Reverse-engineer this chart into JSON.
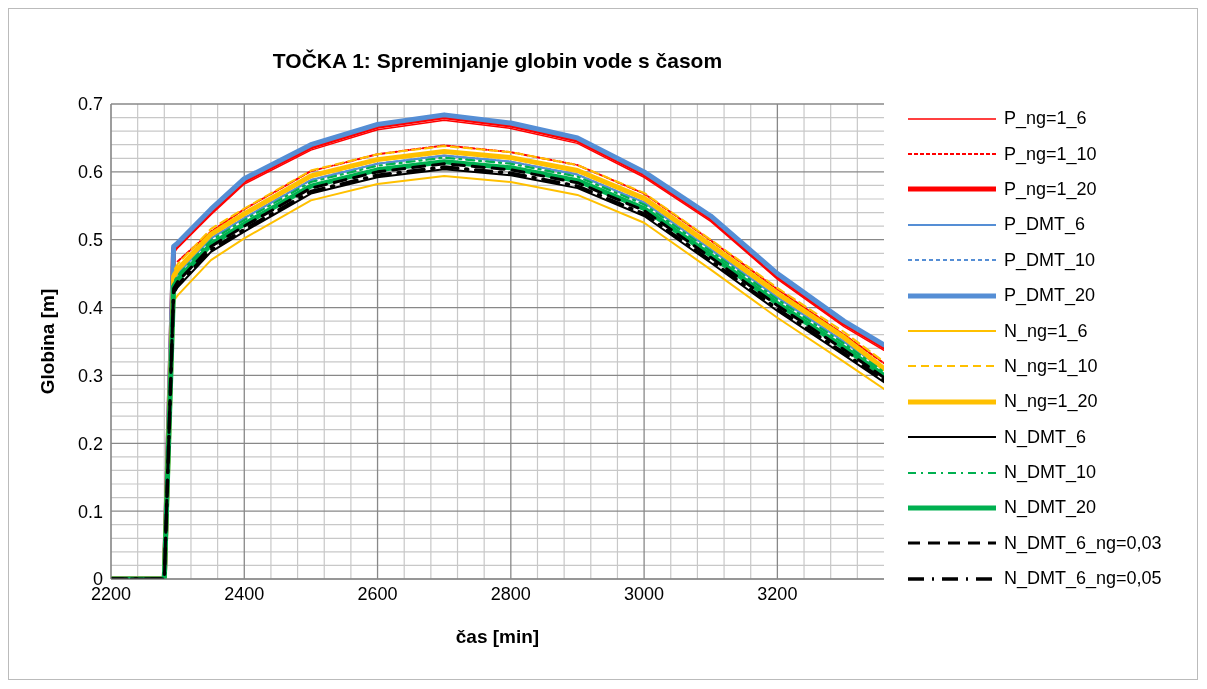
{
  "chart_data": {
    "type": "line",
    "title": "TOČKA 1: Spreminjanje globin vode s časom",
    "xlabel": "čas [min]",
    "ylabel": "Globina [m]",
    "x": [
      2200,
      2280,
      2294,
      2300,
      2350,
      2400,
      2500,
      2600,
      2700,
      2800,
      2900,
      3000,
      3100,
      3200,
      3300,
      3360
    ],
    "xlim": [
      2200,
      3360
    ],
    "xticks": [
      2200,
      2400,
      2600,
      2800,
      3000,
      3200
    ],
    "ylim": [
      0,
      0.7
    ],
    "yticks": [
      0,
      0.1,
      0.2,
      0.3,
      0.4,
      0.5,
      0.6,
      0.7
    ],
    "grid": true,
    "legend": "right",
    "marker": "none",
    "series": [
      {
        "name": "P_ng=1_6",
        "color": "#ff0000",
        "line_style": "solid",
        "values": [
          0,
          0,
          0.48,
          0.488,
          0.537,
          0.582,
          0.632,
          0.662,
          0.676,
          0.664,
          0.642,
          0.592,
          0.527,
          0.442,
          0.372,
          0.337
        ]
      },
      {
        "name": "P_ng=1_10",
        "color": "#ff0000",
        "line_style": "dashed",
        "values": [
          null,
          null,
          null,
          0.468,
          0.512,
          0.545,
          0.601,
          0.626,
          0.639,
          0.629,
          0.61,
          0.568,
          0.499,
          0.427,
          0.36,
          0.318
        ]
      },
      {
        "name": "P_ng=1_20",
        "color": "#ff0000",
        "line_style": "solid",
        "values": [
          0,
          0,
          0.487,
          0.492,
          0.542,
          0.587,
          0.637,
          0.667,
          0.681,
          0.669,
          0.647,
          0.597,
          0.532,
          0.447,
          0.377,
          0.342
        ]
      },
      {
        "name": "P_DMT_6",
        "color": "#558ed5",
        "line_style": "solid",
        "values": [
          null,
          null,
          0.44,
          0.45,
          0.502,
          0.532,
          0.588,
          0.612,
          0.624,
          0.615,
          0.596,
          0.555,
          0.486,
          0.415,
          0.35,
          0.308
        ]
      },
      {
        "name": "P_DMT_10",
        "color": "#558ed5",
        "line_style": "dashed",
        "values": [
          0,
          0,
          0.44,
          0.45,
          0.502,
          0.532,
          0.588,
          0.612,
          0.624,
          0.615,
          0.596,
          0.555,
          0.486,
          0.415,
          0.35,
          0.308
        ]
      },
      {
        "name": "P_DMT_20",
        "color": "#558ed5",
        "line_style": "solid",
        "values": [
          0,
          0,
          0.49,
          0.495,
          0.545,
          0.59,
          0.64,
          0.67,
          0.684,
          0.672,
          0.65,
          0.6,
          0.535,
          0.45,
          0.38,
          0.345
        ]
      },
      {
        "name": "N_ng=1_6",
        "color": "#ffc000",
        "line_style": "solid",
        "values": [
          0,
          0,
          0.41,
          0.418,
          0.47,
          0.502,
          0.558,
          0.582,
          0.594,
          0.585,
          0.566,
          0.525,
          0.456,
          0.385,
          0.32,
          0.28
        ]
      },
      {
        "name": "N_ng=1_10",
        "color": "#ffc000",
        "line_style": "dashed",
        "values": [
          0,
          0,
          0.454,
          0.464,
          0.516,
          0.546,
          0.602,
          0.626,
          0.638,
          0.629,
          0.61,
          0.569,
          0.5,
          0.429,
          0.364,
          0.32
        ]
      },
      {
        "name": "N_ng=1_20",
        "color": "#ffc000",
        "line_style": "solid",
        "values": [
          0,
          0,
          0.446,
          0.456,
          0.508,
          0.538,
          0.594,
          0.618,
          0.63,
          0.621,
          0.602,
          0.561,
          0.492,
          0.421,
          0.356,
          0.31
        ]
      },
      {
        "name": "N_DMT_6",
        "color": "#000000",
        "line_style": "solid",
        "values": [
          0,
          0,
          0.42,
          0.43,
          0.482,
          0.512,
          0.568,
          0.592,
          0.604,
          0.595,
          0.576,
          0.535,
          0.466,
          0.395,
          0.33,
          0.29
        ]
      },
      {
        "name": "N_DMT_10",
        "color": "#00b050",
        "line_style": "dashed",
        "values": [
          0,
          0,
          0.437,
          0.447,
          0.499,
          0.529,
          0.585,
          0.609,
          0.621,
          0.612,
          0.593,
          0.552,
          0.483,
          0.412,
          0.347,
          0.305
        ]
      },
      {
        "name": "N_DMT_20",
        "color": "#00b050",
        "line_style": "solid",
        "values": [
          0,
          0,
          0.431,
          0.441,
          0.493,
          0.523,
          0.579,
          0.603,
          0.615,
          0.606,
          0.587,
          0.546,
          0.477,
          0.406,
          0.341,
          0.3
        ]
      },
      {
        "name": "N_DMT_6_ng=0,03",
        "color": "#000000",
        "line_style": "dashed",
        "values": [
          0,
          0,
          0.428,
          0.438,
          0.49,
          0.52,
          0.576,
          0.6,
          0.612,
          0.603,
          0.584,
          0.543,
          0.474,
          0.403,
          0.338,
          0.297
        ]
      },
      {
        "name": "N_DMT_6_ng=0,05",
        "color": "#000000",
        "line_style": "dashed",
        "values": [
          0,
          0,
          0.423,
          0.433,
          0.485,
          0.515,
          0.571,
          0.595,
          0.607,
          0.598,
          0.579,
          0.538,
          0.469,
          0.398,
          0.333,
          0.293
        ]
      }
    ]
  }
}
